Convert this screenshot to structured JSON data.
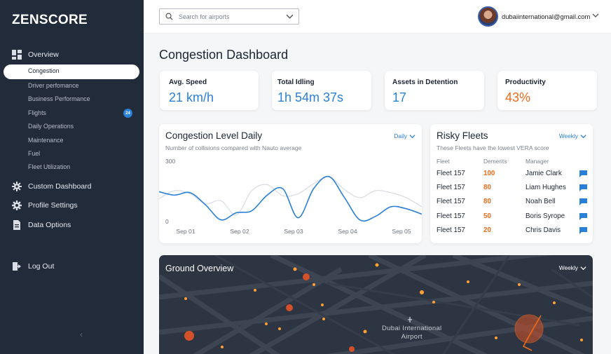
{
  "app": {
    "logo": "ZENSCORE"
  },
  "sidebar": {
    "overview": "Overview",
    "sub_items": [
      "Congestion",
      "Driver perfomance",
      "Business Performance",
      "Flights",
      "Daily Operations",
      "Maintenance",
      "Fuel",
      "Fleet Utilization"
    ],
    "flights_badge": "24",
    "custom_dashboard": "Custom Dashboard",
    "profile_settings": "Profile Settings",
    "data_options": "Data Options",
    "logout": "Log Out",
    "collapse_glyph": "‹"
  },
  "header": {
    "search_placeholder": "Search for airports",
    "email": "dubaiinternational@gmail.com"
  },
  "page": {
    "title": "Congestion Dashboard"
  },
  "kpis": [
    {
      "label": "Avg. Speed",
      "value": "21 km/h",
      "color": "#2a7fd6"
    },
    {
      "label": "Total Idling",
      "value": "1h 54m 37s",
      "color": "#2a7fd6"
    },
    {
      "label": "Assets in Detention",
      "value": "17",
      "color": "#2a7fd6"
    },
    {
      "label": "Productivity",
      "value": "43%",
      "color": "#ef6a1a"
    }
  ],
  "congestion": {
    "title": "Congestion Level Daily",
    "subtitle": "Number of collisions compared with Nauto average",
    "period": "Daily",
    "y_top": "300",
    "y_bottom": "0",
    "x_labels": [
      "Sep 01",
      "Sep 02",
      "Sep 03",
      "Sep 04",
      "Sep 05"
    ]
  },
  "chart_data": {
    "type": "line",
    "x_ticks": [
      "Sep 01",
      "Sep 02",
      "Sep 03",
      "Sep 04",
      "Sep 05"
    ],
    "ylim": [
      0,
      300
    ],
    "y_ticks": [
      "300",
      "0"
    ],
    "series": [
      {
        "color": "#2a7fd6",
        "values": [
          145,
          128,
          140,
          80,
          5,
          40,
          50,
          128,
          160,
          15,
          160,
          220,
          115,
          4,
          22,
          70,
          60,
          33
        ]
      },
      {
        "color": "#d8dbe0",
        "values": [
          110,
          150,
          135,
          85,
          100,
          30,
          150,
          180,
          125,
          135,
          185,
          220,
          155,
          115,
          150,
          140,
          115,
          70
        ]
      }
    ],
    "grid": false
  },
  "risky": {
    "title": "Risky Fleets",
    "subtitle": "These Fleets have the lowest VERA score",
    "period": "Weekly",
    "headers": {
      "fleet": "Fleet",
      "demerits": "Demerits",
      "manager": "Manager"
    },
    "rows": [
      {
        "fleet": "Fleet 157",
        "demerits": "100",
        "manager": "Jamie Clark"
      },
      {
        "fleet": "Fleet 157",
        "demerits": "80",
        "manager": "Liam Hughes"
      },
      {
        "fleet": "Fleet 157",
        "demerits": "80",
        "manager": "Noah Bell"
      },
      {
        "fleet": "Fleet 157",
        "demerits": "50",
        "manager": "Boris Syrope"
      },
      {
        "fleet": "Fleet 157",
        "demerits": "20",
        "manager": "Chris Davis"
      }
    ]
  },
  "ground": {
    "title": "Ground Overview",
    "period": "Weekly",
    "label_line1": "Dubai International",
    "label_line2": "Airport"
  }
}
